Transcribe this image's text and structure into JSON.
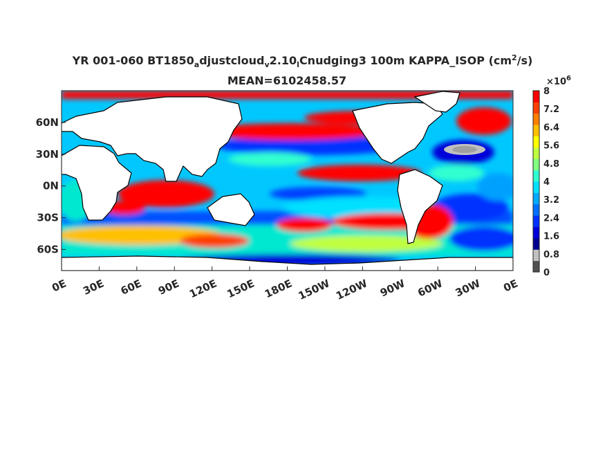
{
  "title": {
    "t1_a": "YR 001-060 BT1850",
    "t1_sub1": "a",
    "t1_b": "djustcloud",
    "t1_sub2": "v",
    "t1_c": "2.10",
    "t1_sub3": "l",
    "t1_d": "Cnudging3 100m KAPPA_ISOP (cm",
    "t1_sup": "2",
    "t1_e": "/s)",
    "line2": "MEAN=6102458.57"
  },
  "axes": {
    "x_ticks": [
      "0E",
      "30E",
      "60E",
      "90E",
      "120E",
      "150E",
      "180E",
      "150W",
      "120W",
      "90W",
      "60W",
      "30W",
      "0E"
    ],
    "y_ticks": [
      "60N",
      "30N",
      "0N",
      "30S",
      "60S"
    ]
  },
  "colorbar": {
    "multiplier": "×10",
    "exponent": "6",
    "ticks": [
      "8",
      "7.2",
      "6.4",
      "5.6",
      "4.8",
      "4",
      "3.2",
      "2.4",
      "1.6",
      "0.8",
      "0"
    ],
    "colors": [
      "#505050",
      "#c0c0c0",
      "#000090",
      "#0000d8",
      "#0030ff",
      "#0070ff",
      "#00aaff",
      "#00e0ff",
      "#30ffd0",
      "#80ff80",
      "#c0ff40",
      "#ffff00",
      "#ffc000",
      "#ff8000",
      "#ff4000",
      "#ff0000"
    ]
  },
  "chart_data": {
    "type": "heatmap",
    "title": "YR 001-060 BT1850adjustcloudv2.10lCnudging3 100m KAPPA_ISOP (cm2/s)",
    "subtitle": "MEAN=6102458.57",
    "x_range": [
      0,
      360
    ],
    "y_range": [
      -80,
      90
    ],
    "colorbar_range": [
      0,
      8
    ],
    "colorbar_scale": "×10^6",
    "mean": 6102458.57
  }
}
